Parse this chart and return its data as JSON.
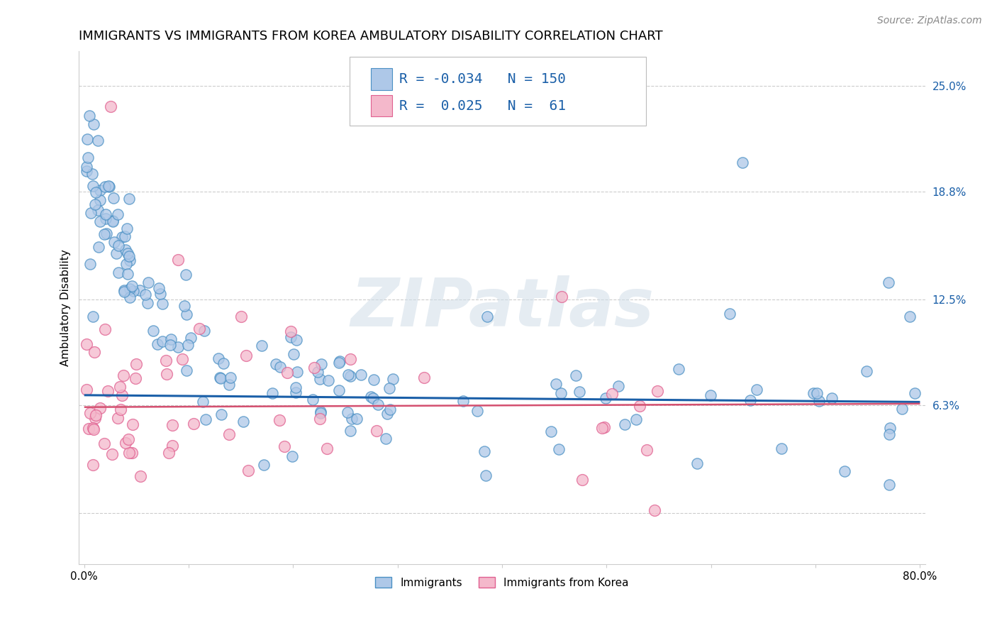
{
  "title": "IMMIGRANTS VS IMMIGRANTS FROM KOREA AMBULATORY DISABILITY CORRELATION CHART",
  "source": "Source: ZipAtlas.com",
  "ylabel": "Ambulatory Disability",
  "blue_R": -0.034,
  "blue_N": 150,
  "pink_R": 0.025,
  "pink_N": 61,
  "blue_color": "#aec8e8",
  "pink_color": "#f4b8cb",
  "blue_edge_color": "#4a90c4",
  "pink_edge_color": "#e06090",
  "blue_line_color": "#1a5fa8",
  "pink_line_color": "#d45070",
  "watermark": "ZIPatlas",
  "legend_label_blue": "Immigrants",
  "legend_label_pink": "Immigrants from Korea",
  "title_fontsize": 13,
  "axis_label_fontsize": 11,
  "tick_fontsize": 11,
  "legend_fontsize": 14,
  "source_fontsize": 10,
  "xlim": [
    0.0,
    0.8
  ],
  "ylim": [
    -0.03,
    0.27
  ],
  "ytick_vals": [
    0.0,
    0.063,
    0.125,
    0.188,
    0.25
  ],
  "ytick_labels": [
    "",
    "6.3%",
    "12.5%",
    "18.8%",
    "25.0%"
  ],
  "xtick_vals": [
    0.0,
    0.1,
    0.2,
    0.3,
    0.4,
    0.5,
    0.6,
    0.7,
    0.8
  ],
  "xtick_labels": [
    "0.0%",
    "",
    "",
    "",
    "",
    "",
    "",
    "",
    "80.0%"
  ],
  "blue_line_y0": 0.069,
  "blue_line_y1": 0.065,
  "pink_line_y0": 0.062,
  "pink_line_y1": 0.064
}
